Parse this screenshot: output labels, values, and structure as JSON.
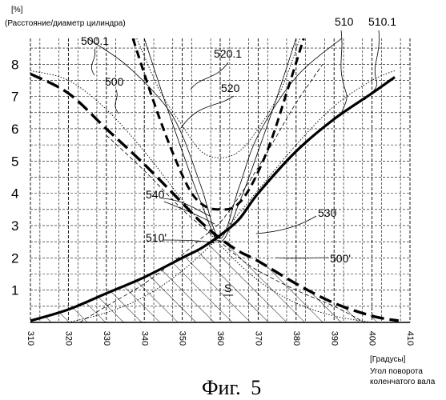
{
  "chart_data": {
    "type": "line",
    "ylabel_unit": "[%]",
    "ylabel": "(Расстояние/диаметр цилиндра)",
    "xlabel_unit": "[Градусы]",
    "xlabel_line1": "Угол поворота",
    "xlabel_line2": "коленчатого вала",
    "caption_prefix": "Фиг.",
    "caption_number": "5",
    "xlim": [
      310,
      410
    ],
    "ylim": [
      0,
      8.8
    ],
    "grid": true,
    "x_ticks": [
      "310",
      "320",
      "330",
      "340",
      "350",
      "360",
      "370",
      "380",
      "390",
      "400",
      "410"
    ],
    "y_ticks": [
      "1",
      "2",
      "3",
      "4",
      "5",
      "6",
      "7",
      "8"
    ],
    "hatched_region_label": "S",
    "series": [
      {
        "name": "500",
        "style": "long-dash-thick",
        "x": [
          310,
          320,
          330,
          340,
          350,
          355,
          360,
          365,
          370,
          380,
          390,
          400,
          407
        ],
        "y": [
          7.7,
          7.1,
          6.0,
          4.9,
          3.7,
          3.1,
          2.6,
          2.2,
          1.9,
          1.2,
          0.6,
          0.2,
          0.05
        ]
      },
      {
        "name": "500.1",
        "style": "dotted",
        "x": [
          310,
          320,
          330,
          340,
          350,
          360,
          370,
          380,
          390,
          400
        ],
        "y": [
          7.8,
          7.5,
          6.6,
          5.3,
          3.8,
          2.4,
          1.3,
          0.6,
          0.2,
          0.0
        ]
      },
      {
        "name": "500'",
        "style": "dashed-thin",
        "x": [
          330,
          340,
          350,
          357,
          360,
          365,
          370,
          380,
          390,
          398
        ],
        "y": [
          5.8,
          4.7,
          3.5,
          2.8,
          2.5,
          2.0,
          1.6,
          1.0,
          0.5,
          0.0
        ]
      },
      {
        "name": "510",
        "style": "solid-thick",
        "x": [
          310,
          320,
          330,
          340,
          350,
          355,
          360,
          365,
          370,
          380,
          390,
          400,
          406
        ],
        "y": [
          0.05,
          0.4,
          0.9,
          1.4,
          2.0,
          2.3,
          2.7,
          3.2,
          4.0,
          5.3,
          6.3,
          7.1,
          7.6
        ]
      },
      {
        "name": "510.1",
        "style": "dotted",
        "x": [
          320,
          330,
          340,
          350,
          360,
          370,
          380,
          390,
          400,
          406
        ],
        "y": [
          0.0,
          0.3,
          0.8,
          1.6,
          2.7,
          4.1,
          5.5,
          6.7,
          7.5,
          7.8
        ]
      },
      {
        "name": "510'",
        "style": "dashed-thin",
        "x": [
          323,
          330,
          340,
          350,
          355,
          360,
          365,
          370,
          375,
          380,
          387
        ],
        "y": [
          0.0,
          0.5,
          1.2,
          2.1,
          2.6,
          3.1,
          3.9,
          4.8,
          5.8,
          6.8,
          8.0
        ]
      },
      {
        "name": "520",
        "style": "short-dash-thick",
        "x": [
          337,
          342,
          347,
          352,
          356,
          360,
          364,
          368,
          373,
          378,
          382
        ],
        "y": [
          8.8,
          7.0,
          5.4,
          4.1,
          3.6,
          3.5,
          3.6,
          4.2,
          5.5,
          7.3,
          8.8
        ]
      },
      {
        "name": "520.1",
        "style": "dotted",
        "x": [
          338,
          344,
          350,
          355,
          360,
          365,
          370,
          376,
          381
        ],
        "y": [
          8.8,
          7.2,
          6.1,
          5.3,
          5.1,
          5.3,
          6.0,
          7.2,
          8.8
        ]
      },
      {
        "name": "530",
        "style": "solid-thin",
        "x": [
          340,
          345,
          350,
          355,
          360,
          365,
          370,
          375,
          380
        ],
        "y": [
          8.8,
          7.0,
          5.3,
          3.7,
          2.5,
          3.7,
          5.3,
          7.0,
          8.8
        ]
      },
      {
        "name": "540",
        "style": "solid-thin",
        "x": [
          325,
          335,
          345,
          350,
          355,
          360,
          365,
          370,
          380,
          392
        ],
        "y": [
          8.8,
          8.0,
          6.8,
          5.8,
          4.2,
          2.6,
          4.2,
          5.8,
          7.6,
          8.8
        ]
      }
    ],
    "annotations": [
      {
        "text": "500.1"
      },
      {
        "text": "500"
      },
      {
        "text": "520.1"
      },
      {
        "text": "520"
      },
      {
        "text": "510"
      },
      {
        "text": "510.1"
      },
      {
        "text": "540"
      },
      {
        "text": "530"
      },
      {
        "text": "510'"
      },
      {
        "text": "500'"
      }
    ]
  }
}
